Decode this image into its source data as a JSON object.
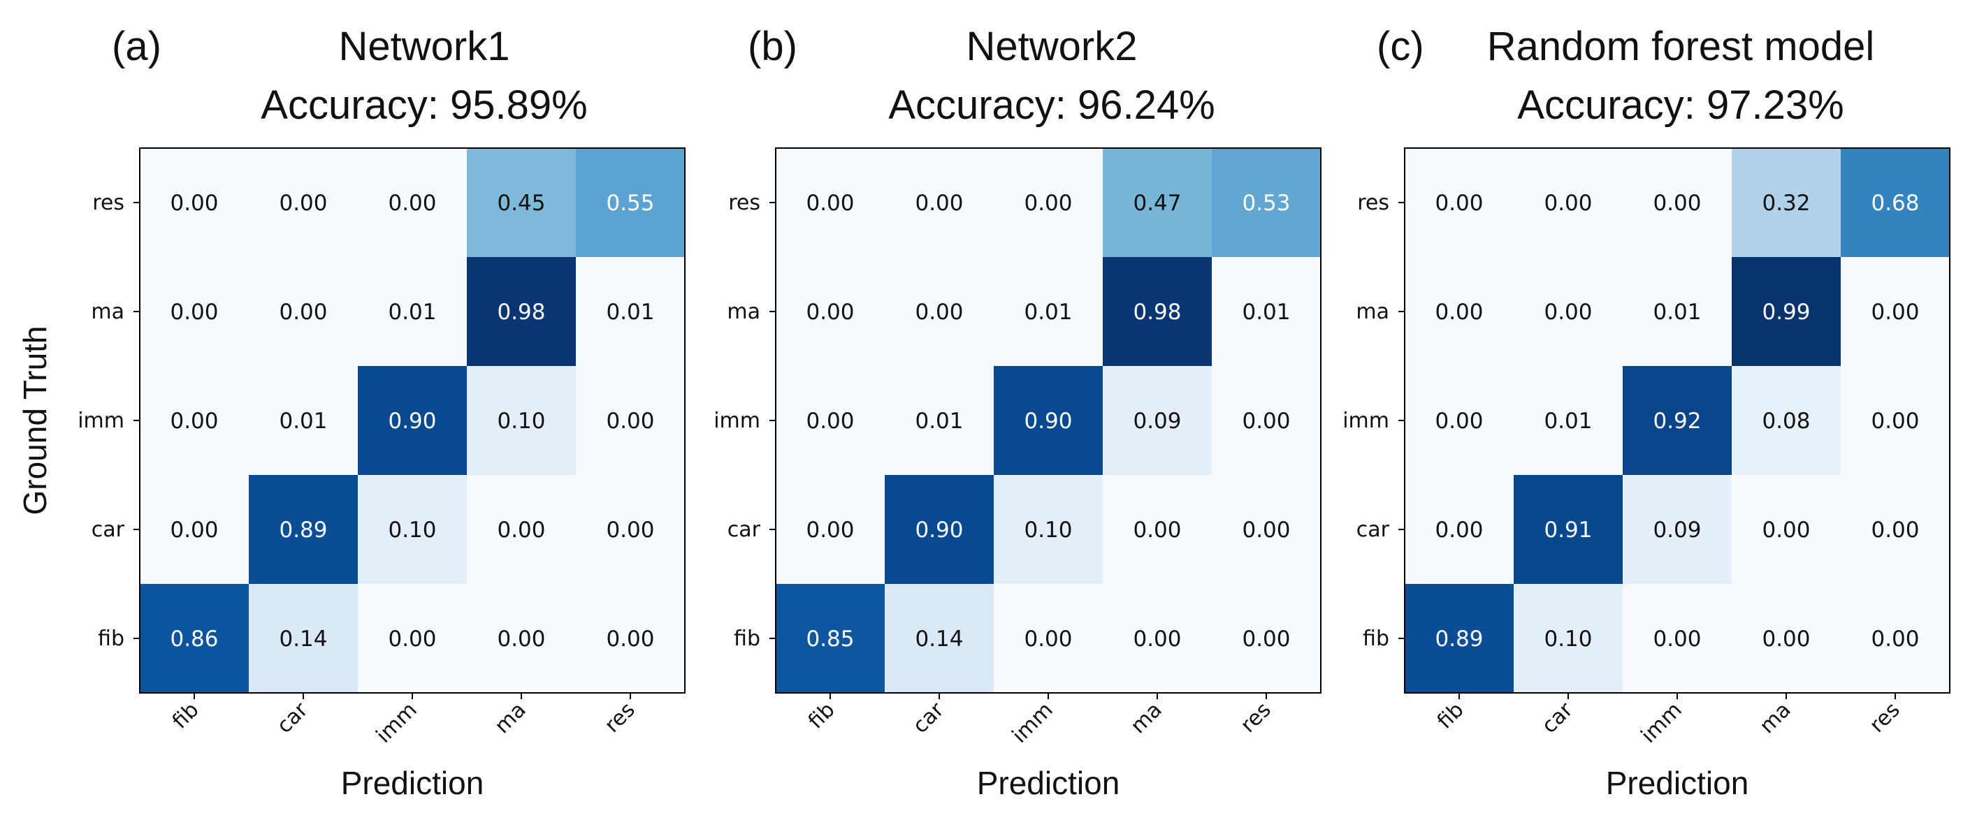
{
  "chart_data": [
    {
      "type": "heatmap",
      "panel": "(a)",
      "title": "Network1",
      "subtitle": "Accuracy: 95.89%",
      "xlabel": "Prediction",
      "ylabel": "Ground Truth",
      "x_categories": [
        "fib",
        "car",
        "imm",
        "ma",
        "res"
      ],
      "y_categories": [
        "res",
        "ma",
        "imm",
        "car",
        "fib"
      ],
      "values": [
        [
          0.0,
          0.0,
          0.0,
          0.45,
          0.55
        ],
        [
          0.0,
          0.0,
          0.01,
          0.98,
          0.01
        ],
        [
          0.0,
          0.01,
          0.9,
          0.1,
          0.0
        ],
        [
          0.0,
          0.89,
          0.1,
          0.0,
          0.0
        ],
        [
          0.86,
          0.14,
          0.0,
          0.0,
          0.0
        ]
      ],
      "colormap": "Blues",
      "vlim": [
        0,
        1
      ]
    },
    {
      "type": "heatmap",
      "panel": "(b)",
      "title": "Network2",
      "subtitle": "Accuracy: 96.24%",
      "xlabel": "Prediction",
      "ylabel": "",
      "x_categories": [
        "fib",
        "car",
        "imm",
        "ma",
        "res"
      ],
      "y_categories": [
        "res",
        "ma",
        "imm",
        "car",
        "fib"
      ],
      "values": [
        [
          0.0,
          0.0,
          0.0,
          0.47,
          0.53
        ],
        [
          0.0,
          0.0,
          0.01,
          0.98,
          0.01
        ],
        [
          0.0,
          0.01,
          0.9,
          0.09,
          0.0
        ],
        [
          0.0,
          0.9,
          0.1,
          0.0,
          0.0
        ],
        [
          0.85,
          0.14,
          0.0,
          0.0,
          0.0
        ]
      ],
      "colormap": "Blues",
      "vlim": [
        0,
        1
      ]
    },
    {
      "type": "heatmap",
      "panel": "(c)",
      "title": "Random forest model",
      "subtitle": "Accuracy: 97.23%",
      "xlabel": "Prediction",
      "ylabel": "",
      "x_categories": [
        "fib",
        "car",
        "imm",
        "ma",
        "res"
      ],
      "y_categories": [
        "res",
        "ma",
        "imm",
        "car",
        "fib"
      ],
      "values": [
        [
          0.0,
          0.0,
          0.0,
          0.32,
          0.68
        ],
        [
          0.0,
          0.0,
          0.01,
          0.99,
          0.0
        ],
        [
          0.0,
          0.01,
          0.92,
          0.08,
          0.0
        ],
        [
          0.0,
          0.91,
          0.09,
          0.0,
          0.0
        ],
        [
          0.89,
          0.1,
          0.0,
          0.0,
          0.0
        ]
      ],
      "colormap": "Blues",
      "vlim": [
        0,
        1
      ]
    }
  ]
}
